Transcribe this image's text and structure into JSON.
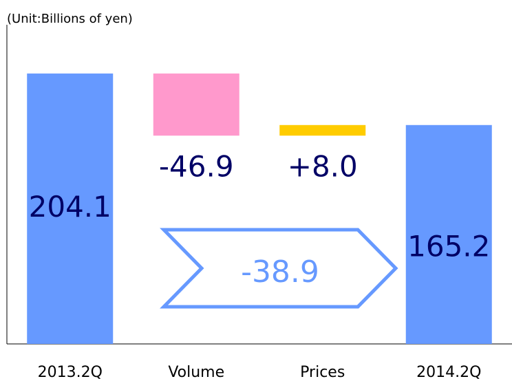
{
  "chart_data": {
    "type": "waterfall",
    "title": "(Unit:Billions of yen)",
    "categories": [
      "2013.2Q",
      "Volume",
      "Prices",
      "2014.2Q"
    ],
    "values": [
      204.1,
      -46.9,
      8.0,
      165.2
    ],
    "value_labels": [
      "204.1",
      "-46.9",
      "+8.0",
      "165.2"
    ],
    "colors": [
      "#6699ff",
      "#ff99cc",
      "#ffcc00",
      "#6699ff"
    ],
    "annotation": {
      "value": -38.9,
      "label": "-38.9"
    },
    "ylim": [
      0,
      244
    ]
  }
}
